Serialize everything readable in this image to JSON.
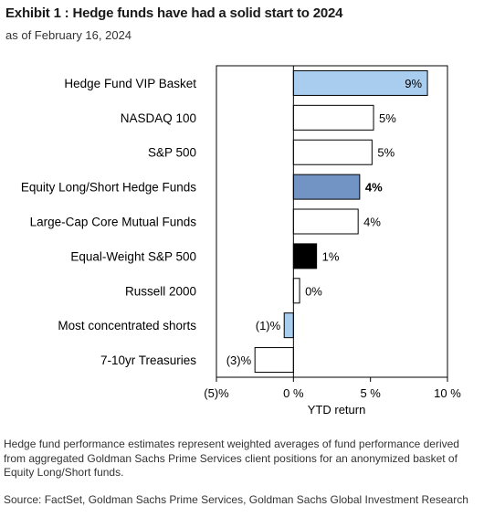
{
  "header": {
    "title": "Exhibit 1 : Hedge funds have had a solid start to 2024",
    "subtitle": "as of February 16, 2024"
  },
  "chart_data": {
    "type": "bar",
    "orientation": "horizontal",
    "categories": [
      "Hedge Fund VIP Basket",
      "NASDAQ 100",
      "S&P 500",
      "Equity Long/Short Hedge Funds",
      "Large-Cap Core Mutual Funds",
      "Equal-Weight S&P 500",
      "Russell 2000",
      "Most concentrated shorts",
      "7-10yr Treasuries"
    ],
    "values": [
      8.7,
      5.2,
      5.1,
      4.3,
      4.2,
      1.5,
      0.4,
      -0.6,
      -2.5
    ],
    "data_labels": [
      "9%",
      "5%",
      "5%",
      "4%",
      "4%",
      "1%",
      "0%",
      "(1)%",
      "(3)%"
    ],
    "bar_colors": [
      "#a9cdef",
      "#ffffff",
      "#ffffff",
      "#7194c4",
      "#ffffff",
      "#000000",
      "#ffffff",
      "#a9cdef",
      "#ffffff"
    ],
    "bold_labels": [
      false,
      false,
      false,
      true,
      false,
      false,
      false,
      false,
      false
    ],
    "xlabel": "YTD return",
    "ylabel": "",
    "xlim": [
      -5,
      10
    ],
    "xticks": [
      -5,
      0,
      5,
      10
    ],
    "xtick_labels": [
      "(5)%",
      "0 %",
      "5 %",
      "10 %"
    ],
    "grid": false
  },
  "footnote": "Hedge fund performance estimates represent weighted averages of fund performance derived from aggregated Goldman Sachs Prime Services client positions for an anonymized basket of Equity Long/Short funds.",
  "source": "Source: FactSet, Goldman Sachs Prime Services, Goldman Sachs Global Investment Research"
}
